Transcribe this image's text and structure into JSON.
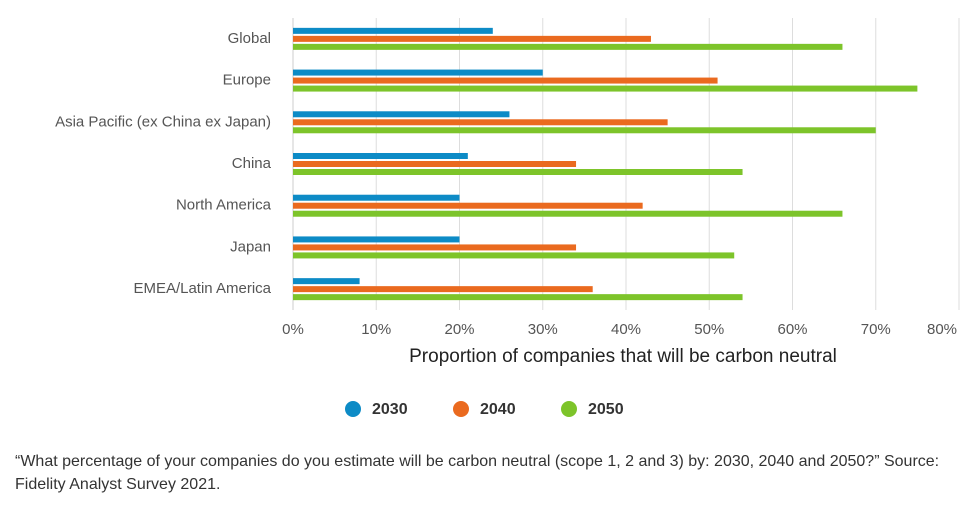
{
  "chart_data": {
    "type": "hbar",
    "categories": [
      "Global",
      "Europe",
      "Asia Pacific (ex China ex Japan)",
      "China",
      "North America",
      "Japan",
      "EMEA/Latin America"
    ],
    "series": [
      {
        "name": "2030",
        "color": "#0d8bc6",
        "values": [
          24,
          30,
          26,
          21,
          20,
          20,
          8
        ]
      },
      {
        "name": "2040",
        "color": "#ea6a1f",
        "values": [
          43,
          51,
          45,
          34,
          42,
          34,
          36
        ]
      },
      {
        "name": "2050",
        "color": "#7dc42a",
        "values": [
          66,
          75,
          70,
          54,
          66,
          53,
          54
        ]
      }
    ],
    "x_label": "Proportion of companies that will be carbon neutral",
    "xlim": [
      0,
      80
    ],
    "xticks": [
      {
        "value": 0,
        "label": "0%"
      },
      {
        "value": 10,
        "label": "10%"
      },
      {
        "value": 20,
        "label": "20%"
      },
      {
        "value": 30,
        "label": "30%"
      },
      {
        "value": 40,
        "label": "40%"
      },
      {
        "value": 50,
        "label": "50%"
      },
      {
        "value": 60,
        "label": "60%"
      },
      {
        "value": 70,
        "label": "70%"
      },
      {
        "value": 80,
        "label": "80%"
      }
    ],
    "grid": true,
    "legend": "bottom",
    "footnote": "“What percentage of your companies do you estimate will be carbon neutral (scope 1, 2 and 3) by: 2030, 2040 and 2050?” Source: Fidelity Analyst Survey 2021."
  }
}
